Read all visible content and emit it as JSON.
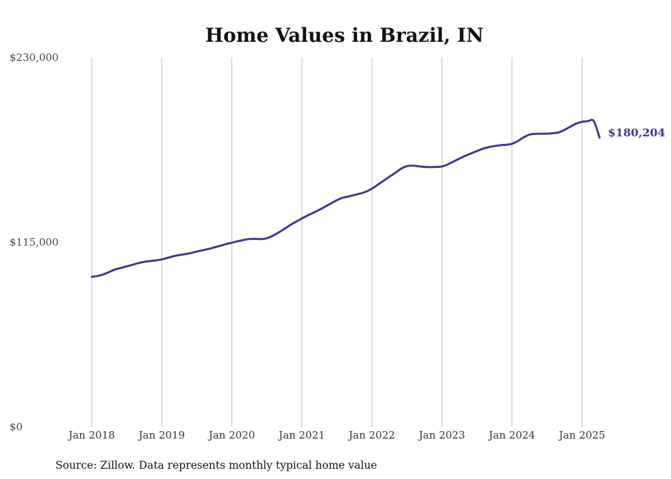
{
  "chart_data": {
    "type": "line",
    "title": "Home Values in Brazil, IN",
    "xlabel": "",
    "ylabel": "",
    "ylim": [
      0,
      230000
    ],
    "y_ticks": [
      0,
      115000,
      230000
    ],
    "y_tick_labels": [
      "$0",
      "$115,000",
      "$230,000"
    ],
    "x_ticks": [
      2018,
      2019,
      2020,
      2021,
      2022,
      2023,
      2024,
      2025
    ],
    "x_tick_labels": [
      "Jan 2018",
      "Jan 2019",
      "Jan 2020",
      "Jan 2021",
      "Jan 2022",
      "Jan 2023",
      "Jan 2024",
      "Jan 2025"
    ],
    "grid": "vertical",
    "series": [
      {
        "color": "#3f3591",
        "x": [
          "2018-01",
          "2018-02",
          "2018-03",
          "2018-04",
          "2018-05",
          "2018-06",
          "2018-07",
          "2018-08",
          "2018-09",
          "2018-10",
          "2018-11",
          "2018-12",
          "2019-01",
          "2019-02",
          "2019-03",
          "2019-04",
          "2019-05",
          "2019-06",
          "2019-07",
          "2019-08",
          "2019-09",
          "2019-10",
          "2019-11",
          "2019-12",
          "2020-01",
          "2020-02",
          "2020-03",
          "2020-04",
          "2020-05",
          "2020-06",
          "2020-07",
          "2020-08",
          "2020-09",
          "2020-10",
          "2020-11",
          "2020-12",
          "2021-01",
          "2021-02",
          "2021-03",
          "2021-04",
          "2021-05",
          "2021-06",
          "2021-07",
          "2021-08",
          "2021-09",
          "2021-10",
          "2021-11",
          "2021-12",
          "2022-01",
          "2022-02",
          "2022-03",
          "2022-04",
          "2022-05",
          "2022-06",
          "2022-07",
          "2022-08",
          "2022-09",
          "2022-10",
          "2022-11",
          "2022-12",
          "2023-01",
          "2023-02",
          "2023-03",
          "2023-04",
          "2023-05",
          "2023-06",
          "2023-07",
          "2023-08",
          "2023-09",
          "2023-10",
          "2023-11",
          "2023-12",
          "2024-01",
          "2024-02",
          "2024-03",
          "2024-04",
          "2024-05",
          "2024-06",
          "2024-07",
          "2024-08",
          "2024-09",
          "2024-10",
          "2024-11",
          "2024-12",
          "2025-01",
          "2025-02",
          "2025-03",
          "2025-04"
        ],
        "values": [
          93500,
          94000,
          95000,
          96500,
          98000,
          99000,
          100000,
          101000,
          102000,
          102800,
          103300,
          103700,
          104300,
          105300,
          106300,
          107000,
          107600,
          108300,
          109200,
          110000,
          110800,
          111800,
          112800,
          113800,
          114700,
          115600,
          116400,
          117000,
          117100,
          117000,
          117500,
          119000,
          121000,
          123300,
          125700,
          127800,
          129800,
          131700,
          133400,
          135200,
          137200,
          139200,
          141200,
          142700,
          143500,
          144400,
          145300,
          146500,
          148400,
          150800,
          153300,
          155800,
          158200,
          160800,
          162400,
          162700,
          162300,
          161900,
          161800,
          161900,
          162200,
          163500,
          165300,
          167100,
          168800,
          170300,
          171800,
          173200,
          174200,
          174900,
          175400,
          175700,
          176300,
          178000,
          180300,
          182000,
          182500,
          182600,
          182600,
          182900,
          183400,
          185000,
          187000,
          188900,
          190000,
          190400,
          190500,
          180204
        ]
      }
    ],
    "end_label": "$180,204",
    "source": "Source: Zillow. Data represents monthly typical home value"
  }
}
